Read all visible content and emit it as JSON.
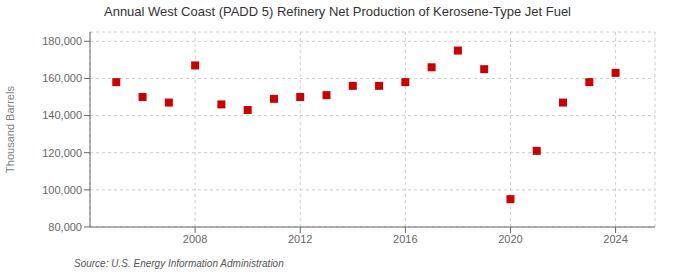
{
  "chart_data": {
    "type": "scatter",
    "title": "Annual West Coast (PADD 5) Refinery Net Production of Kerosene-Type Jet Fuel",
    "y_label": "Thousand Barrels",
    "annotations": [
      "Source: U.S. Energy Information Administration"
    ],
    "x": [
      2005,
      2006,
      2007,
      2008,
      2009,
      2010,
      2011,
      2012,
      2013,
      2014,
      2015,
      2016,
      2017,
      2018,
      2019,
      2020,
      2021,
      2022,
      2023,
      2024
    ],
    "values": [
      158000,
      150000,
      147000,
      167000,
      146000,
      143000,
      149000,
      150000,
      151000,
      156000,
      156000,
      158000,
      166000,
      175000,
      165000,
      95000,
      121000,
      147000,
      158000,
      163000
    ],
    "color": "#cc0000",
    "marker": "square",
    "xlim": [
      2004,
      2025.5
    ],
    "xticks": [
      2008,
      2012,
      2016,
      2020,
      2024
    ],
    "ylim": [
      80000,
      185000
    ],
    "yticks": [
      {
        "value": 80000,
        "label": "80,000"
      },
      {
        "value": 100000,
        "label": "100,000"
      },
      {
        "value": 120000,
        "label": "120,000"
      },
      {
        "value": 140000,
        "label": "140,000"
      },
      {
        "value": 160000,
        "label": "160,000"
      },
      {
        "value": 180000,
        "label": "180,000"
      }
    ],
    "grid": true
  }
}
